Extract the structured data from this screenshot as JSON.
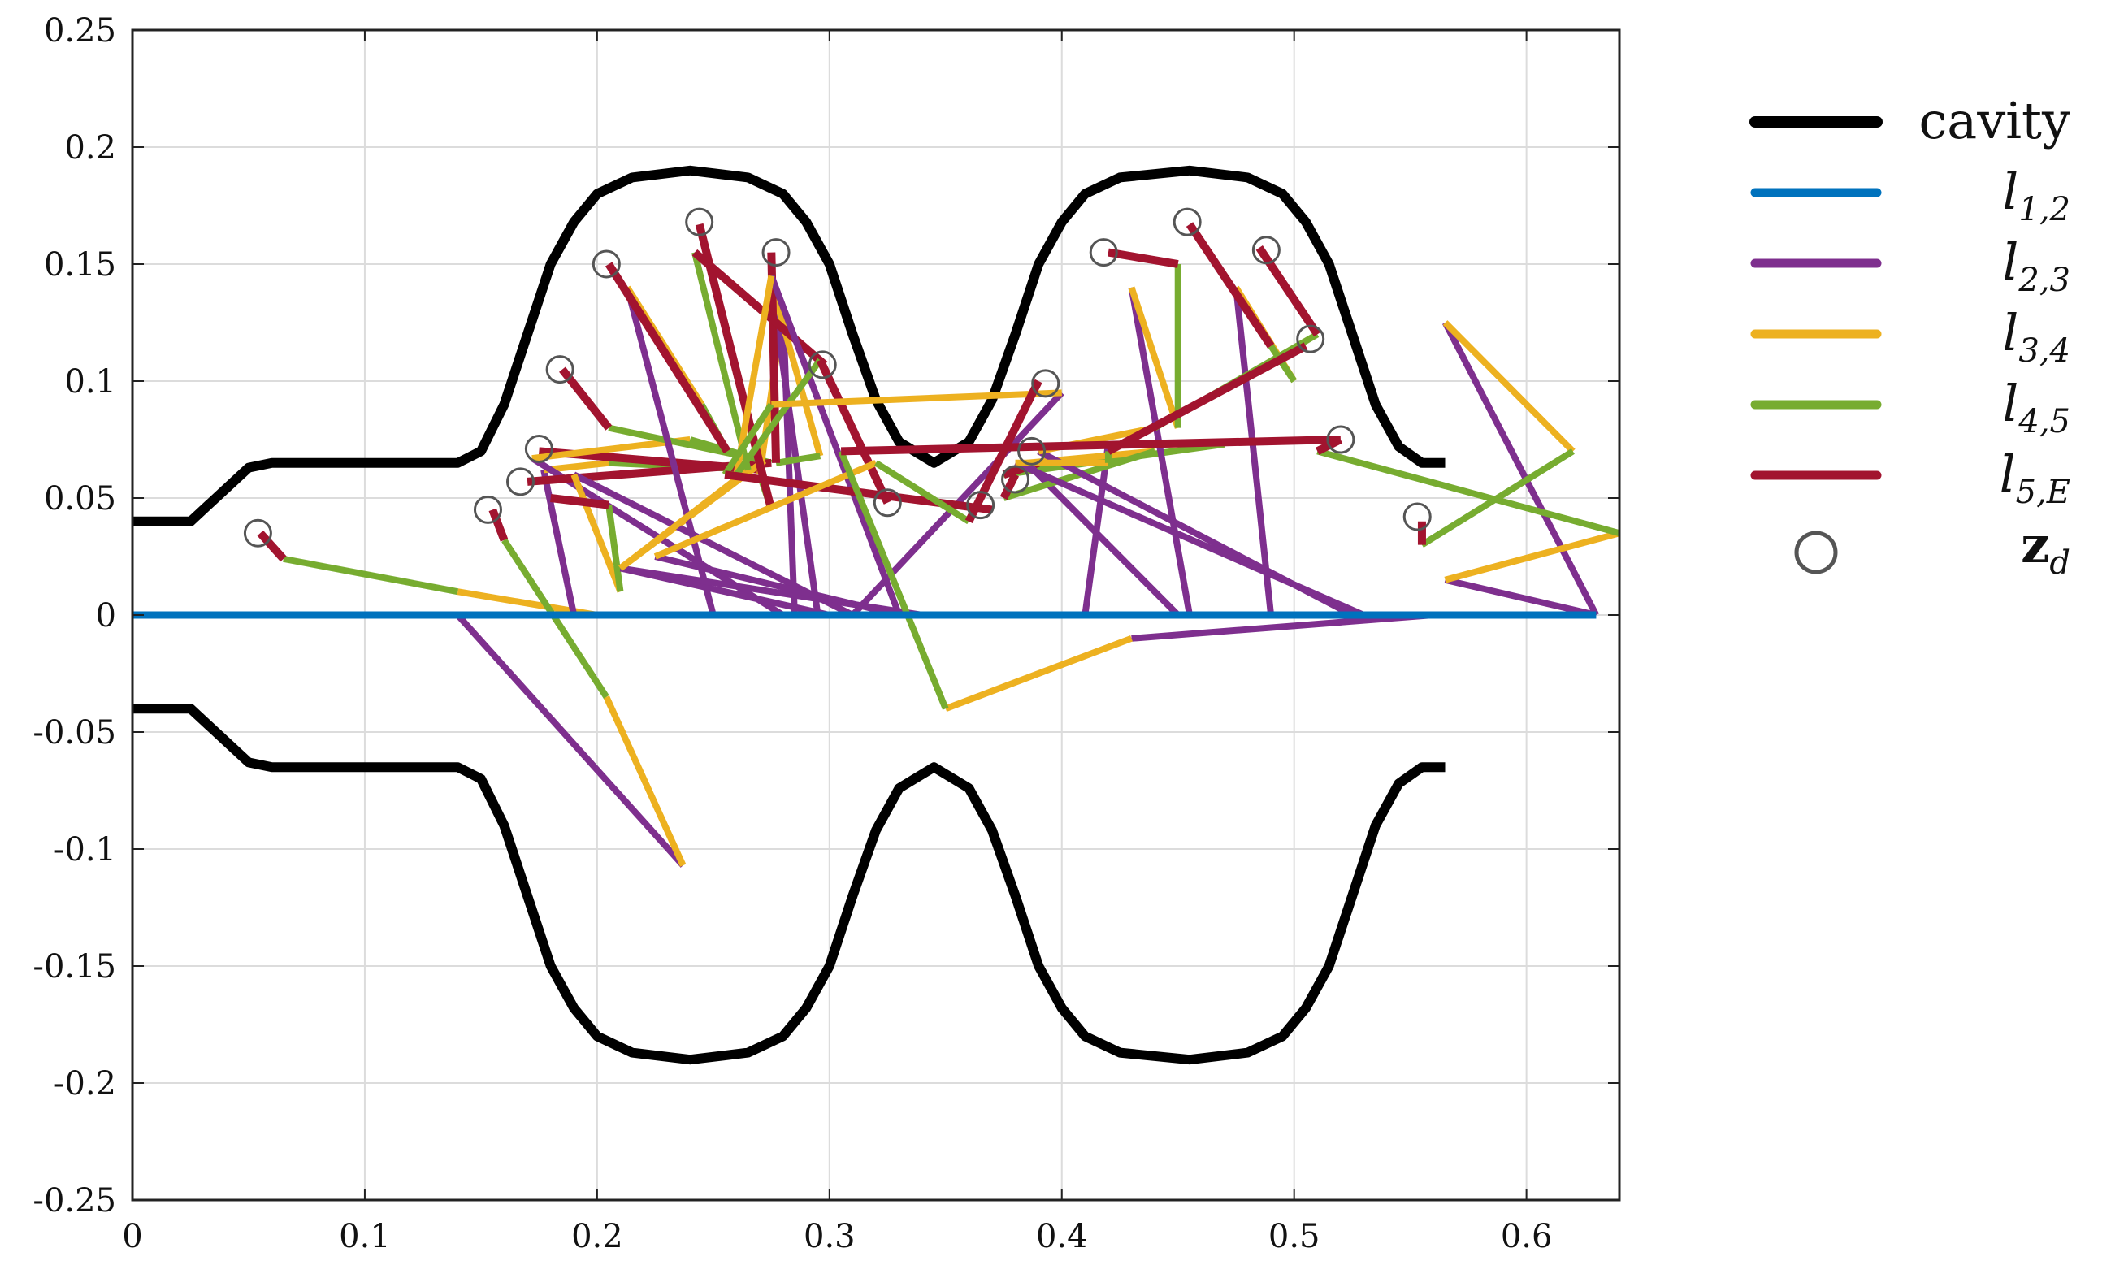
{
  "chart_data": {
    "type": "line",
    "xlim": [
      0,
      0.64
    ],
    "ylim": [
      -0.25,
      0.25
    ],
    "grid": true,
    "x_ticks": [
      0,
      0.1,
      0.2,
      0.3,
      0.4,
      0.5,
      0.6
    ],
    "x_tick_labels": [
      "0",
      "0.1",
      "0.2",
      "0.3",
      "0.4",
      "0.5",
      "0.6"
    ],
    "y_ticks": [
      0.25,
      0.2,
      0.15,
      0.1,
      0.05,
      0,
      -0.05,
      -0.1,
      -0.15,
      -0.2,
      -0.25
    ],
    "y_tick_labels": [
      "0.25",
      "0.2",
      "0.15",
      "0.1",
      "0.05",
      "0",
      "-0.05",
      "-0.1",
      "-0.15",
      "-0.2",
      "-0.25"
    ],
    "legend_position": "right",
    "legend": [
      {
        "key": "cavity",
        "base": "cavity",
        "sub": "",
        "style": "line",
        "color": "#000000"
      },
      {
        "key": "l12",
        "base": "l",
        "sub": "1,2",
        "style": "line",
        "color": "#0072BD"
      },
      {
        "key": "l23",
        "base": "l",
        "sub": "2,3",
        "style": "line",
        "color": "#7E2F8E"
      },
      {
        "key": "l34",
        "base": "l",
        "sub": "3,4",
        "style": "line",
        "color": "#EDB120"
      },
      {
        "key": "l45",
        "base": "l",
        "sub": "4,5",
        "style": "line",
        "color": "#77AC30"
      },
      {
        "key": "l5E",
        "base": "l",
        "sub": "5,E",
        "style": "line",
        "color": "#A2142F"
      },
      {
        "key": "zd",
        "base": "z",
        "sub": "d",
        "style": "circle",
        "color": "#555555"
      }
    ],
    "cavity_upper": [
      [
        0,
        0.04
      ],
      [
        0.025,
        0.04
      ],
      [
        0.05,
        0.063
      ],
      [
        0.06,
        0.065
      ],
      [
        0.14,
        0.065
      ],
      [
        0.15,
        0.07
      ],
      [
        0.16,
        0.09
      ],
      [
        0.17,
        0.12
      ],
      [
        0.18,
        0.15
      ],
      [
        0.19,
        0.168
      ],
      [
        0.2,
        0.18
      ],
      [
        0.215,
        0.187
      ],
      [
        0.24,
        0.19
      ],
      [
        0.265,
        0.187
      ],
      [
        0.28,
        0.18
      ],
      [
        0.29,
        0.168
      ],
      [
        0.3,
        0.15
      ],
      [
        0.31,
        0.12
      ],
      [
        0.32,
        0.092
      ],
      [
        0.33,
        0.074
      ],
      [
        0.345,
        0.065
      ],
      [
        0.36,
        0.074
      ],
      [
        0.37,
        0.092
      ],
      [
        0.38,
        0.12
      ],
      [
        0.39,
        0.15
      ],
      [
        0.4,
        0.168
      ],
      [
        0.41,
        0.18
      ],
      [
        0.425,
        0.187
      ],
      [
        0.455,
        0.19
      ],
      [
        0.48,
        0.187
      ],
      [
        0.495,
        0.18
      ],
      [
        0.505,
        0.168
      ],
      [
        0.515,
        0.15
      ],
      [
        0.525,
        0.12
      ],
      [
        0.535,
        0.09
      ],
      [
        0.545,
        0.072
      ],
      [
        0.555,
        0.065
      ],
      [
        0.565,
        0.065
      ]
    ],
    "cavity_lower": [
      [
        0,
        -0.04
      ],
      [
        0.025,
        -0.04
      ],
      [
        0.05,
        -0.063
      ],
      [
        0.06,
        -0.065
      ],
      [
        0.14,
        -0.065
      ],
      [
        0.15,
        -0.07
      ],
      [
        0.16,
        -0.09
      ],
      [
        0.17,
        -0.12
      ],
      [
        0.18,
        -0.15
      ],
      [
        0.19,
        -0.168
      ],
      [
        0.2,
        -0.18
      ],
      [
        0.215,
        -0.187
      ],
      [
        0.24,
        -0.19
      ],
      [
        0.265,
        -0.187
      ],
      [
        0.28,
        -0.18
      ],
      [
        0.29,
        -0.168
      ],
      [
        0.3,
        -0.15
      ],
      [
        0.31,
        -0.12
      ],
      [
        0.32,
        -0.092
      ],
      [
        0.33,
        -0.074
      ],
      [
        0.345,
        -0.065
      ],
      [
        0.36,
        -0.074
      ],
      [
        0.37,
        -0.092
      ],
      [
        0.38,
        -0.12
      ],
      [
        0.39,
        -0.15
      ],
      [
        0.4,
        -0.168
      ],
      [
        0.41,
        -0.18
      ],
      [
        0.425,
        -0.187
      ],
      [
        0.455,
        -0.19
      ],
      [
        0.48,
        -0.187
      ],
      [
        0.495,
        -0.18
      ],
      [
        0.505,
        -0.168
      ],
      [
        0.515,
        -0.15
      ],
      [
        0.525,
        -0.12
      ],
      [
        0.535,
        -0.09
      ],
      [
        0.545,
        -0.072
      ],
      [
        0.555,
        -0.065
      ],
      [
        0.565,
        -0.065
      ]
    ],
    "l12": [
      [
        0,
        0
      ],
      [
        0.63,
        0
      ]
    ],
    "chains": [
      [
        [
          0.14,
          0
        ],
        [
          0.2,
          0
        ],
        [
          0.14,
          0.01
        ],
        [
          0.065,
          0.024
        ],
        [
          0.055,
          0.035
        ]
      ],
      [
        [
          0.14,
          0
        ],
        [
          0.237,
          -0.107
        ],
        [
          0.204,
          -0.035
        ],
        [
          0.16,
          0.032
        ],
        [
          0.155,
          0.045
        ]
      ],
      [
        [
          0.19,
          0
        ],
        [
          0.177,
          0.062
        ],
        [
          0.205,
          0.065
        ],
        [
          0.272,
          0.062
        ],
        [
          0.175,
          0.07
        ]
      ],
      [
        [
          0.28,
          0
        ],
        [
          0.172,
          0.067
        ],
        [
          0.24,
          0.075
        ],
        [
          0.275,
          0.065
        ],
        [
          0.17,
          0.057
        ]
      ],
      [
        [
          0.3,
          0
        ],
        [
          0.21,
          0.02
        ],
        [
          0.272,
          0.066
        ],
        [
          0.205,
          0.08
        ],
        [
          0.185,
          0.105
        ]
      ],
      [
        [
          0.31,
          0
        ],
        [
          0.19,
          0.06
        ],
        [
          0.21,
          0.01
        ],
        [
          0.205,
          0.047
        ],
        [
          0.18,
          0.05
        ]
      ],
      [
        [
          0.25,
          0
        ],
        [
          0.213,
          0.14
        ],
        [
          0.245,
          0.09
        ],
        [
          0.256,
          0.07
        ],
        [
          0.205,
          0.15
        ]
      ],
      [
        [
          0.285,
          0
        ],
        [
          0.28,
          0.13
        ],
        [
          0.27,
          0.06
        ],
        [
          0.275,
          0.045
        ],
        [
          0.244,
          0.167
        ]
      ],
      [
        [
          0.295,
          0
        ],
        [
          0.275,
          0.142
        ],
        [
          0.296,
          0.068
        ],
        [
          0.277,
          0.065
        ],
        [
          0.275,
          0.155
        ]
      ],
      [
        [
          0.34,
          0
        ],
        [
          0.21,
          0.02
        ],
        [
          0.265,
          0.062
        ],
        [
          0.242,
          0.155
        ],
        [
          0.298,
          0.107
        ]
      ],
      [
        [
          0.33,
          0
        ],
        [
          0.275,
          0.145
        ],
        [
          0.26,
          0.06
        ],
        [
          0.296,
          0.109
        ],
        [
          0.325,
          0.048
        ]
      ],
      [
        [
          0.31,
          0
        ],
        [
          0.4,
          0.095
        ],
        [
          0.275,
          0.09
        ],
        [
          0.255,
          0.06
        ],
        [
          0.37,
          0.045
        ]
      ],
      [
        [
          0.33,
          0
        ],
        [
          0.225,
          0.025
        ],
        [
          0.32,
          0.065
        ],
        [
          0.36,
          0.04
        ],
        [
          0.39,
          0.1
        ]
      ],
      [
        [
          0.41,
          0
        ],
        [
          0.42,
          0.073
        ],
        [
          0.47,
          0.073
        ],
        [
          0.375,
          0.06
        ],
        [
          0.39,
          0.065
        ]
      ],
      [
        [
          0.45,
          0
        ],
        [
          0.385,
          0.065
        ],
        [
          0.44,
          0.07
        ],
        [
          0.375,
          0.05
        ],
        [
          0.38,
          0.06
        ]
      ],
      [
        [
          0.455,
          0
        ],
        [
          0.43,
          0.14
        ],
        [
          0.45,
          0.08
        ],
        [
          0.45,
          0.15
        ],
        [
          0.42,
          0.155
        ]
      ],
      [
        [
          0.49,
          0
        ],
        [
          0.475,
          0.14
        ],
        [
          0.5,
          0.1
        ],
        [
          0.49,
          0.115
        ],
        [
          0.455,
          0.167
        ]
      ],
      [
        [
          0.525,
          0
        ],
        [
          0.39,
          0.07
        ],
        [
          0.44,
          0.08
        ],
        [
          0.51,
          0.12
        ],
        [
          0.485,
          0.157
        ]
      ],
      [
        [
          0.53,
          0
        ],
        [
          0.38,
          0.065
        ],
        [
          0.42,
          0.065
        ],
        [
          0.42,
          0.07
        ],
        [
          0.505,
          0.115
        ]
      ],
      [
        [
          0.56,
          0
        ],
        [
          0.43,
          -0.01
        ],
        [
          0.35,
          -0.04
        ],
        [
          0.305,
          0.07
        ],
        [
          0.52,
          0.075
        ]
      ],
      [
        [
          0.63,
          0
        ],
        [
          0.565,
          0.125
        ],
        [
          0.62,
          0.07
        ],
        [
          0.555,
          0.03
        ],
        [
          0.555,
          0.04
        ]
      ],
      [
        [
          0.63,
          0
        ],
        [
          0.565,
          0.015
        ],
        [
          0.64,
          0.035
        ],
        [
          0.51,
          0.07
        ],
        [
          0.52,
          0.075
        ]
      ]
    ],
    "zd_points": [
      [
        0.054,
        0.035
      ],
      [
        0.153,
        0.045
      ],
      [
        0.167,
        0.057
      ],
      [
        0.175,
        0.071
      ],
      [
        0.184,
        0.105
      ],
      [
        0.204,
        0.15
      ],
      [
        0.244,
        0.168
      ],
      [
        0.277,
        0.155
      ],
      [
        0.297,
        0.107
      ],
      [
        0.325,
        0.048
      ],
      [
        0.365,
        0.047
      ],
      [
        0.38,
        0.058
      ],
      [
        0.387,
        0.07
      ],
      [
        0.393,
        0.099
      ],
      [
        0.418,
        0.155
      ],
      [
        0.454,
        0.168
      ],
      [
        0.488,
        0.156
      ],
      [
        0.507,
        0.118
      ],
      [
        0.52,
        0.075
      ],
      [
        0.553,
        0.042
      ]
    ]
  }
}
